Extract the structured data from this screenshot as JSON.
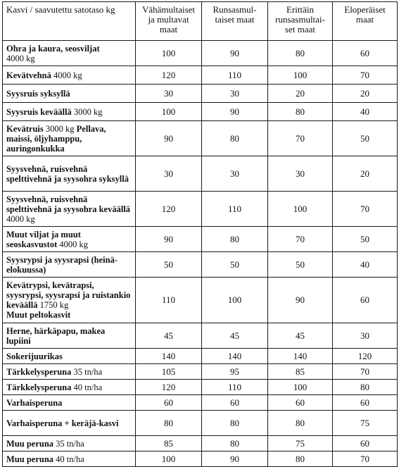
{
  "table": {
    "headers": [
      "Kasvi / saavutettu satotaso kg",
      "Vähämultaiset ja multavat maat",
      "Runsasmul-taiset maat",
      "Erittäin runsasmultai-set maat",
      "Eloperäiset maat"
    ],
    "rows": [
      {
        "label": "Ohra ja kaura, seosviljat",
        "suffix": "4000 kg",
        "values": [
          "100",
          "90",
          "80",
          "60"
        ]
      },
      {
        "label": "Kevätvehnä",
        "suffix": " 4000 kg",
        "values": [
          "120",
          "110",
          "100",
          "70"
        ]
      },
      {
        "label": "Syysruis syksyllä",
        "suffix": "",
        "values": [
          "30",
          "30",
          "20",
          "20"
        ]
      },
      {
        "label": "Syysruis keväällä",
        "suffix": " 3000 kg",
        "values": [
          "100",
          "90",
          "80",
          "40"
        ]
      },
      {
        "label": "Kevätruis",
        "suffix": " 3000 kg",
        "label2": " Pellava, maissi, öljyhamppu, auringonkukka",
        "values": [
          "90",
          "80",
          "70",
          "50"
        ]
      },
      {
        "label": "Syysvehnä, ruisvehnä spelttivehnä ja syysohra syksyllä",
        "suffix": "",
        "values": [
          "30",
          "30",
          "30",
          "20"
        ]
      },
      {
        "label": "Syysvehnä, ruisvehnä spelttivehnä ja syysohra keväällä",
        "suffix": " 4000 kg",
        "values": [
          "120",
          "110",
          "100",
          "70"
        ]
      },
      {
        "label": "Muut viljat ja muut seoskasvustot",
        "suffix": " 4000 kg",
        "values": [
          "90",
          "80",
          "70",
          "50"
        ]
      },
      {
        "label": "Syysrypsi ja syysrapsi (heinä-elokuussa)",
        "suffix": "",
        "values": [
          "50",
          "50",
          "50",
          "40"
        ]
      },
      {
        "label": "Kevätrypsi, kevätrapsi, syysrypsi, syysrapsi ja ruistankio keväällä",
        "suffix": " 1750 kg",
        "label2": "Muut peltokasvit",
        "values": [
          "110",
          "100",
          "90",
          "60"
        ]
      },
      {
        "label": "Herne, härkäpapu, makea lupiini",
        "suffix": "",
        "values": [
          "45",
          "45",
          "45",
          "30"
        ]
      },
      {
        "label": "Sokerijuurikas",
        "suffix": "",
        "values": [
          "140",
          "140",
          "140",
          "120"
        ]
      },
      {
        "label": "Tärkkelysperuna",
        "suffix": " 35 tn/ha",
        "values": [
          "105",
          "95",
          "85",
          "70"
        ]
      },
      {
        "label": "Tärkkelysperuna",
        "suffix": " 40 tn/ha",
        "values": [
          "120",
          "110",
          "100",
          "80"
        ]
      },
      {
        "label": "Varhaisperuna",
        "suffix": "",
        "values": [
          "60",
          "60",
          "60",
          "60"
        ]
      },
      {
        "label": "Varhaisperuna + keräjä-kasvi",
        "suffix": "",
        "values": [
          "80",
          "80",
          "80",
          "75"
        ]
      },
      {
        "label": "Muu peruna",
        "suffix": " 35 tn/ha",
        "values": [
          "85",
          "80",
          "75",
          "60"
        ]
      },
      {
        "label": "Muu peruna",
        "suffix": " 40 tn/ha",
        "values": [
          "100",
          "90",
          "80",
          "70"
        ]
      }
    ]
  }
}
